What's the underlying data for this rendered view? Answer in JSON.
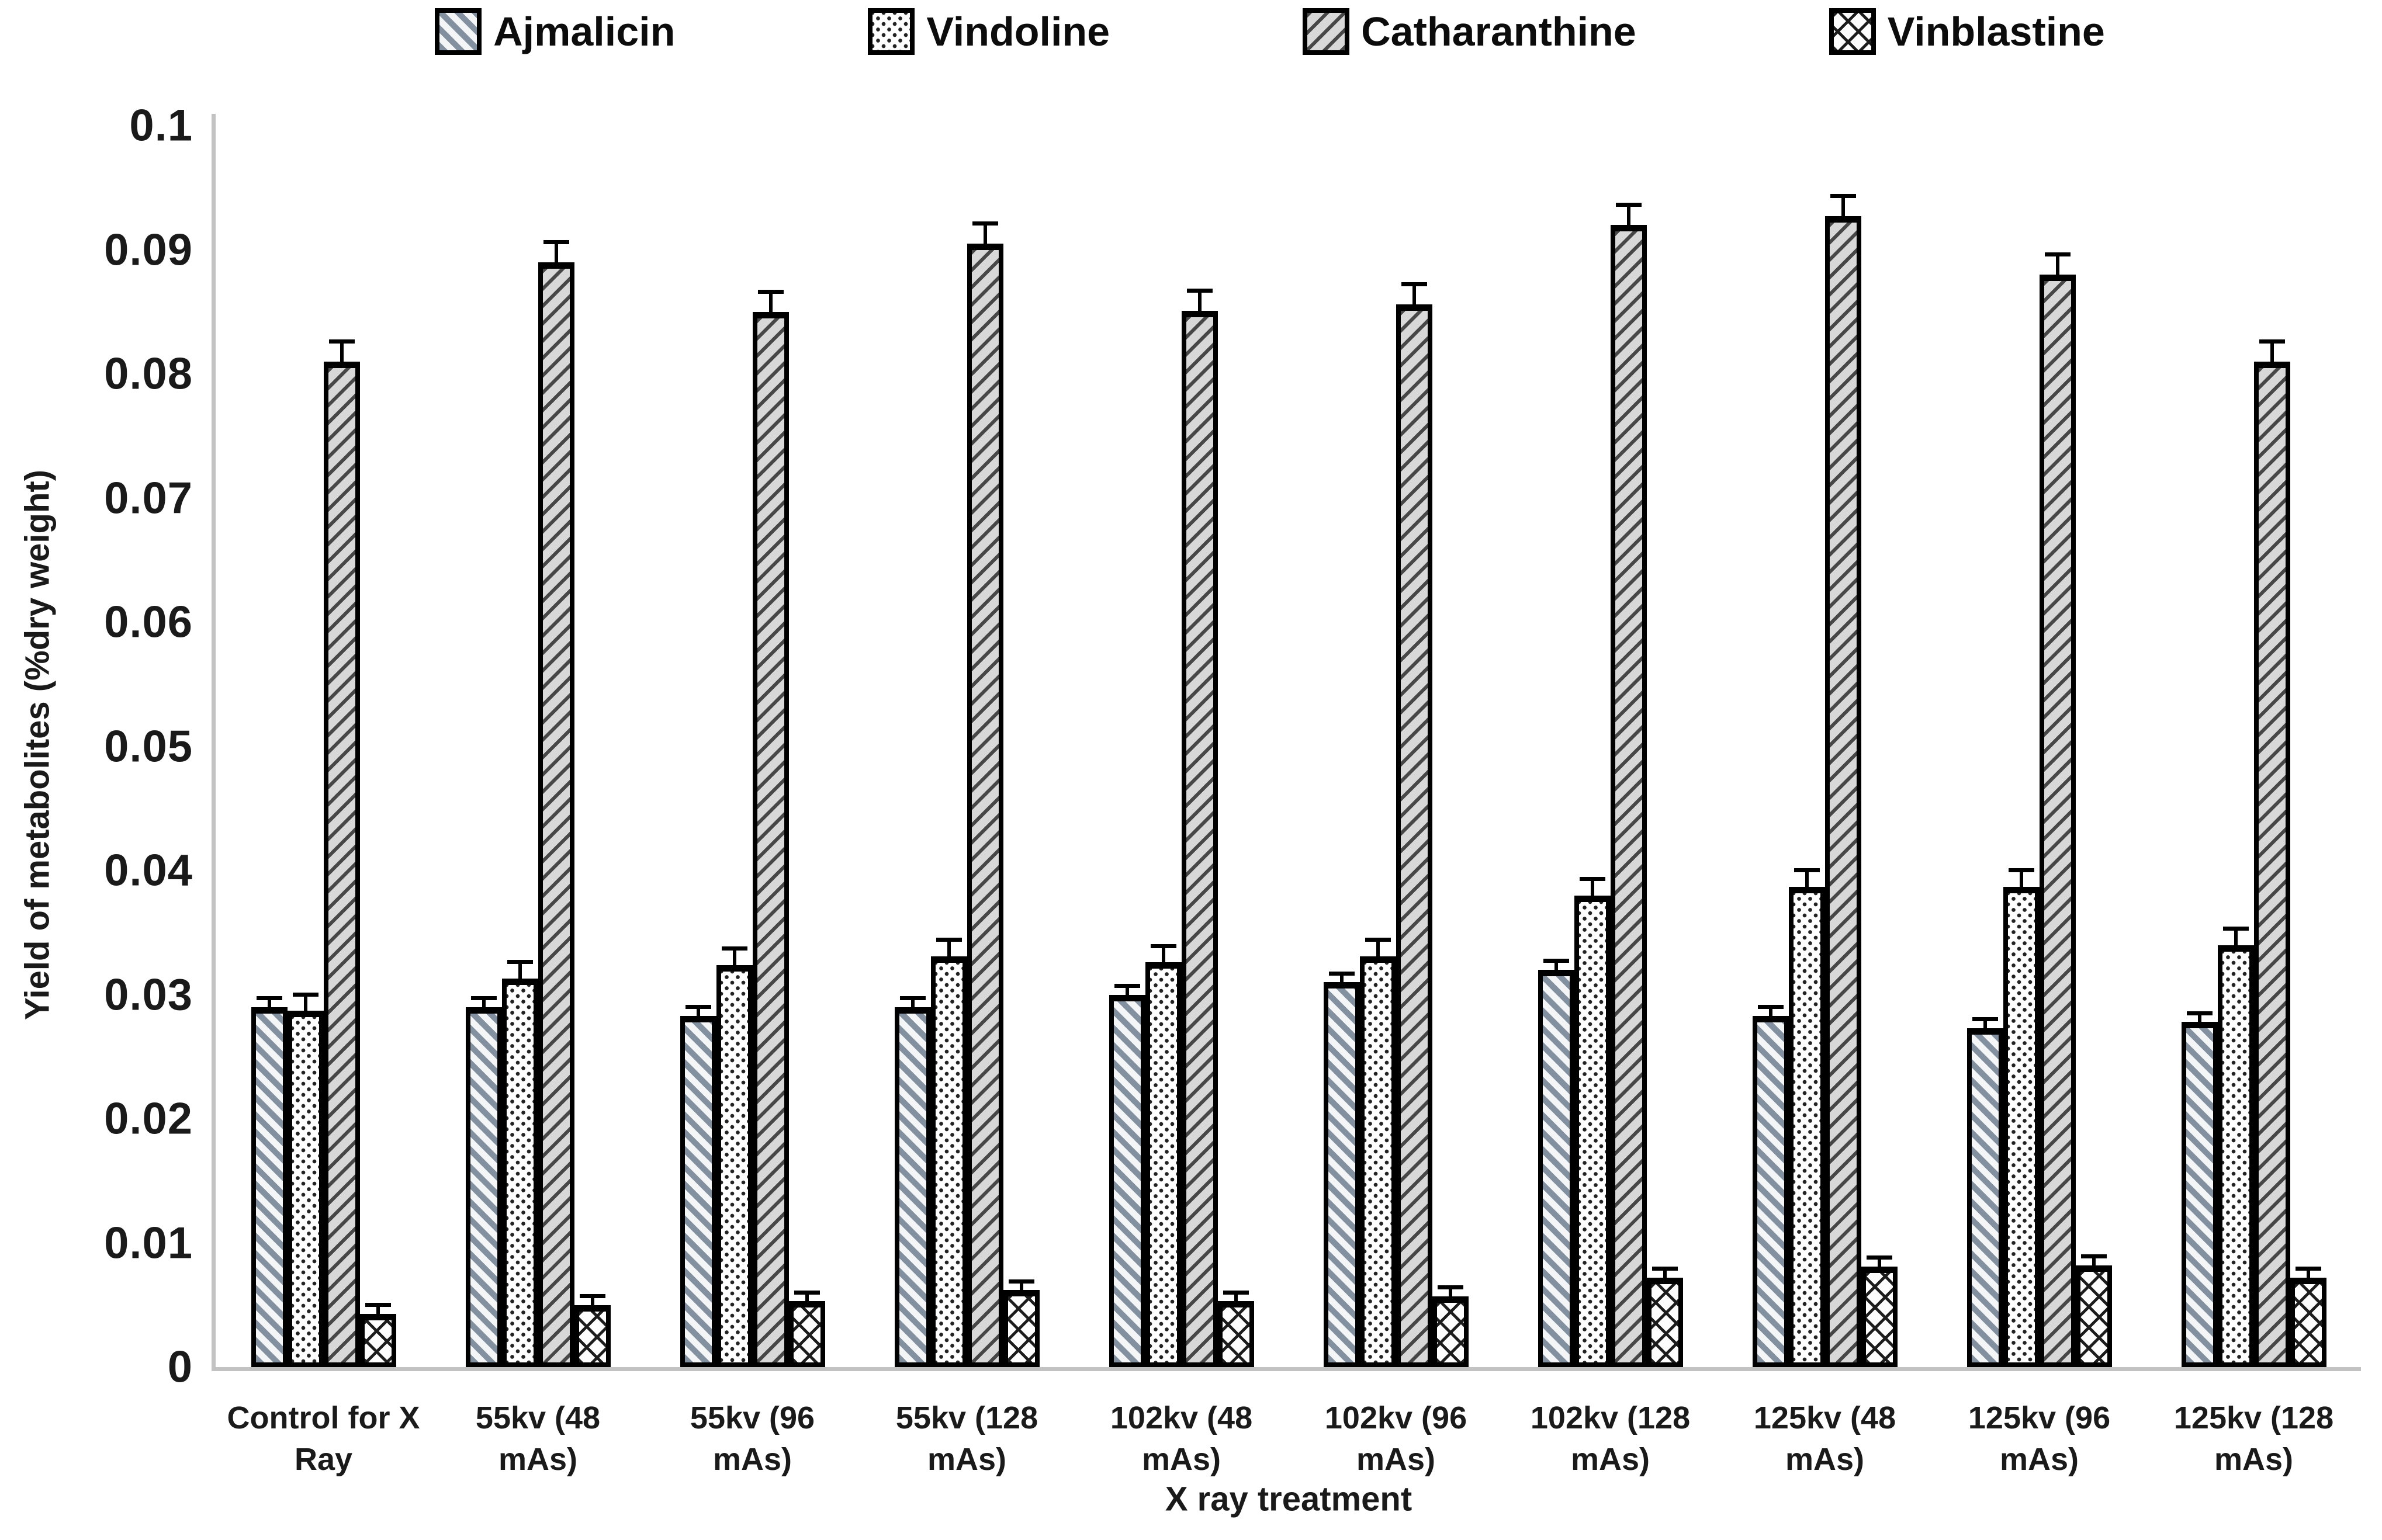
{
  "colors": {
    "background": "#ffffff",
    "axis_line": "#c2c2c2",
    "bar_border": "#000000",
    "text": "#111111",
    "ajmalicin_stripe": "#8290a0",
    "vindoline_dot": "#222222",
    "catharanthine_stripe": "#474747",
    "vinblastine_line": "#1c1c1c"
  },
  "chart_data": {
    "type": "bar",
    "title": "",
    "xlabel": "X ray treatment",
    "ylabel": "Yield of metabolites (%dry weight)",
    "ylim": [
      0,
      0.1
    ],
    "ytick_step": 0.01,
    "ytick_labels": [
      "0",
      "0.01",
      "0.02",
      "0.03",
      "0.04",
      "0.05",
      "0.06",
      "0.07",
      "0.08",
      "0.09",
      "0.1"
    ],
    "grid": false,
    "legend_position": "top",
    "error_bars": true,
    "categories": [
      "Control for X Ray",
      "55kv (48 mAs)",
      "55kv (96 mAs)",
      "55kv (128 mAs)",
      "102kv (48 mAs)",
      "102kv (96 mAs)",
      "102kv (128 mAs)",
      "125kv (48 mAs)",
      "125kv (96 mAs)",
      "125kv (128 mAs)"
    ],
    "series": [
      {
        "name": "Ajmalicin",
        "pattern": "back-diagonal-hatch",
        "error": 0.0006,
        "values": [
          0.029,
          0.029,
          0.0283,
          0.029,
          0.03,
          0.031,
          0.032,
          0.0283,
          0.0273,
          0.0278
        ]
      },
      {
        "name": "Vindoline",
        "pattern": "dot-hatch",
        "error": 0.0012,
        "values": [
          0.0287,
          0.0313,
          0.0324,
          0.0331,
          0.0326,
          0.0331,
          0.038,
          0.0387,
          0.0387,
          0.034
        ]
      },
      {
        "name": "Catharanthine",
        "pattern": "forward-diagonal-hatch",
        "error": 0.0015,
        "values": [
          0.081,
          0.089,
          0.085,
          0.0905,
          0.0851,
          0.0856,
          0.092,
          0.0927,
          0.088,
          0.081
        ]
      },
      {
        "name": "Vinblastine",
        "pattern": "cross-hatch",
        "error": 0.0006,
        "values": [
          0.0043,
          0.005,
          0.0053,
          0.0062,
          0.0053,
          0.0057,
          0.0072,
          0.0081,
          0.0082,
          0.0072
        ]
      }
    ]
  }
}
